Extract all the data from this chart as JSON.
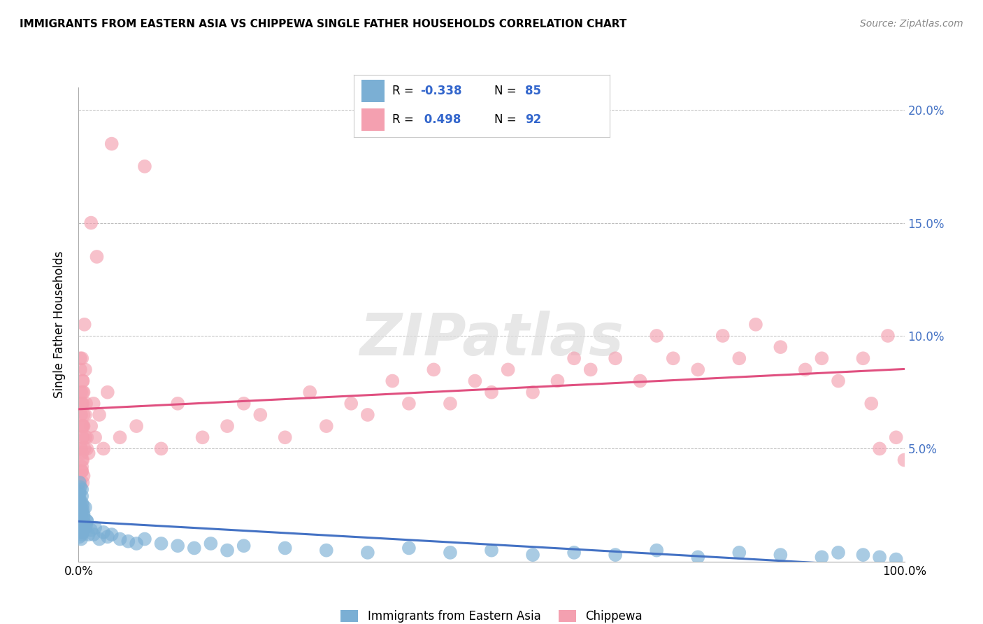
{
  "title": "IMMIGRANTS FROM EASTERN ASIA VS CHIPPEWA SINGLE FATHER HOUSEHOLDS CORRELATION CHART",
  "source": "Source: ZipAtlas.com",
  "ylabel": "Single Father Households",
  "xlim": [
    0,
    100
  ],
  "ylim": [
    0,
    21
  ],
  "xticks": [
    0,
    20,
    40,
    60,
    80,
    100
  ],
  "xtick_labels": [
    "0.0%",
    "",
    "",
    "",
    "",
    "100.0%"
  ],
  "yticks": [
    0,
    5,
    10,
    15,
    20
  ],
  "ytick_labels_right": [
    "",
    "5.0%",
    "10.0%",
    "15.0%",
    "20.0%"
  ],
  "blue_R": -0.338,
  "blue_N": 85,
  "pink_R": 0.498,
  "pink_N": 92,
  "blue_color": "#7BAFD4",
  "pink_color": "#F4A0B0",
  "blue_line_color": "#4472C4",
  "pink_line_color": "#E05080",
  "watermark": "ZIPatlas",
  "legend_label_blue": "Immigrants from Eastern Asia",
  "legend_label_pink": "Chippewa",
  "grid_color": "#BBBBBB",
  "background_color": "#FFFFFF",
  "blue_scatter_x": [
    0.1,
    0.2,
    0.1,
    0.3,
    0.2,
    0.4,
    0.1,
    0.2,
    0.3,
    0.1,
    0.2,
    0.3,
    0.4,
    0.2,
    0.1,
    0.3,
    0.2,
    0.4,
    0.1,
    0.2,
    0.3,
    0.4,
    0.2,
    0.1,
    0.3,
    0.2,
    0.4,
    0.1,
    0.2,
    0.3,
    0.5,
    0.4,
    0.6,
    0.3,
    0.2,
    0.5,
    0.7,
    0.4,
    0.6,
    0.8,
    0.5,
    0.3,
    1.0,
    0.8,
    0.6,
    1.2,
    1.0,
    0.9,
    1.5,
    1.8,
    2.0,
    2.5,
    3.0,
    3.5,
    4.0,
    5.0,
    6.0,
    7.0,
    8.0,
    10.0,
    12.0,
    14.0,
    16.0,
    18.0,
    20.0,
    25.0,
    30.0,
    35.0,
    40.0,
    45.0,
    50.0,
    55.0,
    60.0,
    65.0,
    70.0,
    75.0,
    80.0,
    85.0,
    90.0,
    92.0,
    95.0,
    97.0,
    99.0,
    0.2,
    0.3
  ],
  "blue_scatter_y": [
    1.5,
    2.0,
    3.0,
    1.8,
    2.5,
    1.2,
    3.5,
    2.2,
    1.0,
    2.8,
    1.6,
    2.1,
    3.2,
    1.4,
    2.7,
    1.9,
    2.4,
    1.3,
    3.1,
    2.0,
    1.7,
    2.6,
    3.3,
    1.1,
    2.3,
    1.8,
    2.9,
    1.5,
    2.1,
    1.6,
    2.5,
    1.8,
    2.0,
    1.4,
    1.9,
    2.3,
    1.7,
    2.2,
    1.5,
    2.4,
    1.3,
    2.0,
    1.8,
    1.5,
    2.1,
    1.2,
    1.8,
    1.6,
    1.4,
    1.2,
    1.5,
    1.0,
    1.3,
    1.1,
    1.2,
    1.0,
    0.9,
    0.8,
    1.0,
    0.8,
    0.7,
    0.6,
    0.8,
    0.5,
    0.7,
    0.6,
    0.5,
    0.4,
    0.6,
    0.4,
    0.5,
    0.3,
    0.4,
    0.3,
    0.5,
    0.2,
    0.4,
    0.3,
    0.2,
    0.4,
    0.3,
    0.2,
    0.1,
    2.0,
    1.7
  ],
  "pink_scatter_x": [
    0.2,
    0.3,
    0.4,
    0.5,
    0.3,
    0.4,
    0.2,
    0.5,
    0.6,
    0.3,
    0.4,
    0.5,
    0.3,
    0.4,
    0.2,
    0.5,
    0.4,
    0.3,
    0.5,
    0.4,
    0.6,
    0.5,
    0.7,
    0.4,
    0.5,
    0.6,
    0.8,
    0.5,
    1.0,
    0.8,
    1.2,
    1.5,
    1.0,
    1.8,
    2.0,
    2.5,
    3.0,
    3.5,
    5.0,
    7.0,
    10.0,
    12.0,
    15.0,
    18.0,
    20.0,
    22.0,
    25.0,
    28.0,
    30.0,
    33.0,
    35.0,
    38.0,
    40.0,
    43.0,
    45.0,
    48.0,
    50.0,
    52.0,
    55.0,
    58.0,
    60.0,
    62.0,
    65.0,
    68.0,
    70.0,
    72.0,
    75.0,
    78.0,
    80.0,
    82.0,
    85.0,
    88.0,
    90.0,
    92.0,
    95.0,
    96.0,
    97.0,
    98.0,
    99.0,
    100.0,
    0.3,
    0.5,
    0.4,
    0.6,
    0.7,
    0.5,
    0.8,
    0.9,
    1.5,
    2.2,
    4.0,
    8.0
  ],
  "pink_scatter_y": [
    3.5,
    5.0,
    4.0,
    6.0,
    7.0,
    4.5,
    8.5,
    5.5,
    3.8,
    6.5,
    4.2,
    7.5,
    5.0,
    4.8,
    9.0,
    3.5,
    6.0,
    7.5,
    5.5,
    4.0,
    6.5,
    8.0,
    5.0,
    7.0,
    4.5,
    6.0,
    5.5,
    7.0,
    5.0,
    6.5,
    4.8,
    6.0,
    5.5,
    7.0,
    5.5,
    6.5,
    5.0,
    7.5,
    5.5,
    6.0,
    5.0,
    7.0,
    5.5,
    6.0,
    7.0,
    6.5,
    5.5,
    7.5,
    6.0,
    7.0,
    6.5,
    8.0,
    7.0,
    8.5,
    7.0,
    8.0,
    7.5,
    8.5,
    7.5,
    8.0,
    9.0,
    8.5,
    9.0,
    8.0,
    10.0,
    9.0,
    8.5,
    10.0,
    9.0,
    10.5,
    9.5,
    8.5,
    9.0,
    8.0,
    9.0,
    7.0,
    5.0,
    10.0,
    5.5,
    4.5,
    4.0,
    8.0,
    9.0,
    7.5,
    10.5,
    6.0,
    8.5,
    7.0,
    15.0,
    13.5,
    18.5,
    17.5
  ]
}
